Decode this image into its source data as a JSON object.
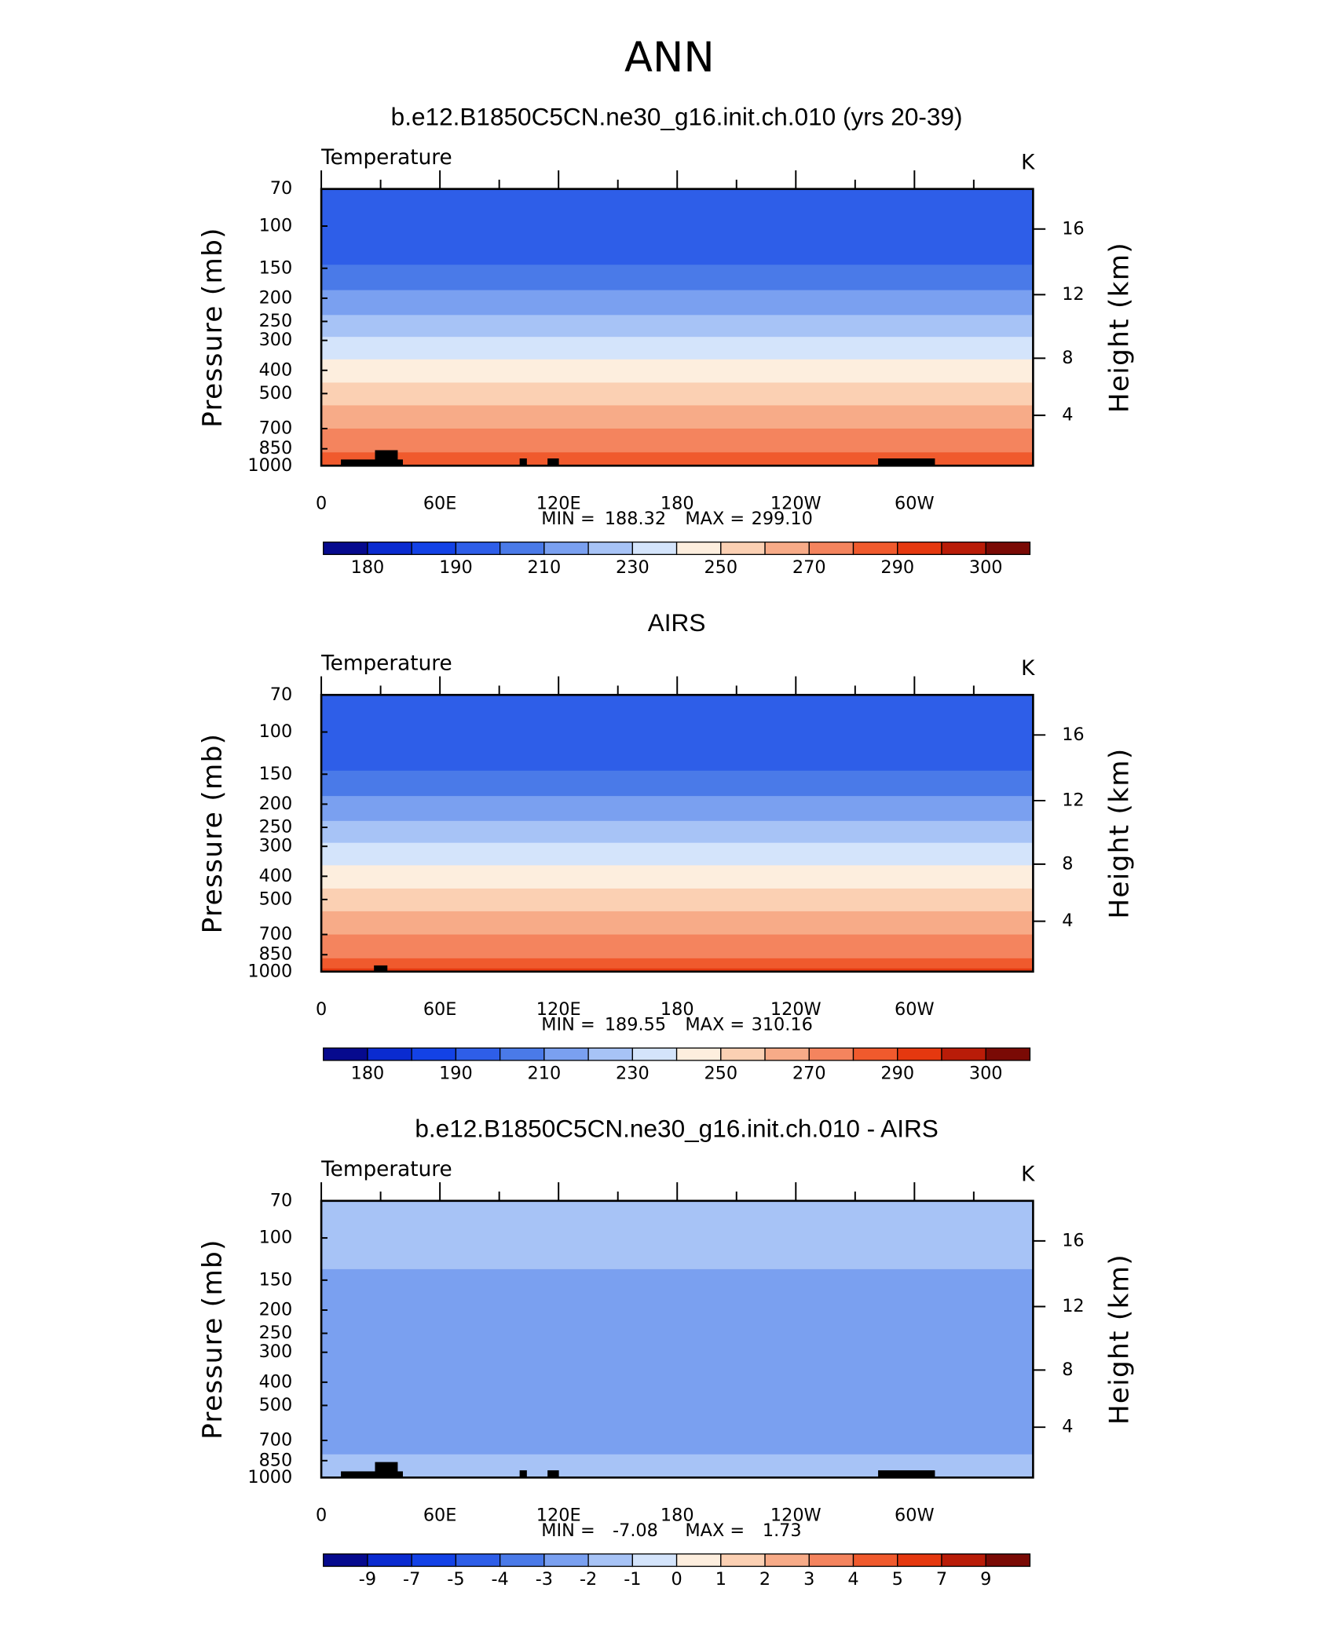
{
  "title": "ANN",
  "chart_data": [
    {
      "type": "contour",
      "title": "b.e12.B1850C5CN.ne30_g16.init.ch.010 (yrs 20-39)",
      "subtitle": "Temperature",
      "units": "K",
      "ylabel": "Pressure (mb)",
      "y2label": "Height (km)",
      "ylim": [
        1000,
        70
      ],
      "log_y": true,
      "yticks": [
        70,
        100,
        150,
        200,
        250,
        300,
        400,
        500,
        700,
        850,
        1000
      ],
      "y2ticks": [
        4,
        8,
        12,
        16
      ],
      "xlim": [
        0,
        360
      ],
      "xticks": [
        0,
        {
          "value": 60,
          "label": "60E"
        },
        {
          "value": 120,
          "label": "120E"
        },
        180,
        {
          "value": 240,
          "label": "120W"
        },
        {
          "value": 300,
          "label": "60W"
        }
      ],
      "min_label": "MIN =",
      "min": 188.32,
      "max_label": "MAX =",
      "max": {
        "value": 299.1,
        "label": "299.10"
      },
      "field": {
        "pressure": [
          70,
          145,
          185,
          235,
          290,
          360,
          450,
          560,
          700,
          880,
          1000
        ],
        "values": [
          195,
          205,
          215,
          225,
          235,
          245,
          255,
          265,
          275,
          285
        ]
      },
      "colorbar": {
        "levels": [
          180,
          185,
          190,
          200,
          210,
          220,
          230,
          240,
          250,
          260,
          270,
          280,
          290,
          295,
          300
        ],
        "ticks": [
          180,
          190,
          210,
          230,
          250,
          270,
          290,
          300
        ],
        "colors": [
          "#060a8e",
          "#0a2bd0",
          "#1342e6",
          "#2e5ee8",
          "#4a7ae8",
          "#7aa0f0",
          "#a7c3f6",
          "#d4e4fb",
          "#fdeede",
          "#fbd0b3",
          "#f7ab88",
          "#f4845e",
          "#f05a2d",
          "#e5380f",
          "#b91c08",
          "#7a0a05"
        ]
      }
    },
    {
      "type": "contour",
      "title": "AIRS",
      "subtitle": "Temperature",
      "units": "K",
      "ylabel": "Pressure (mb)",
      "y2label": "Height (km)",
      "ylim": [
        1000,
        70
      ],
      "log_y": true,
      "yticks": [
        70,
        100,
        150,
        200,
        250,
        300,
        400,
        500,
        700,
        850,
        1000
      ],
      "y2ticks": [
        4,
        8,
        12,
        16
      ],
      "xlim": [
        0,
        360
      ],
      "xticks": [
        0,
        {
          "value": 60,
          "label": "60E"
        },
        {
          "value": 120,
          "label": "120E"
        },
        180,
        {
          "value": 240,
          "label": "120W"
        },
        {
          "value": 300,
          "label": "60W"
        }
      ],
      "min_label": "MIN =",
      "min": 189.55,
      "max_label": "MAX =",
      "max": 310.16,
      "field": {
        "pressure": [
          70,
          145,
          185,
          235,
          290,
          360,
          450,
          560,
          700,
          880,
          970,
          1000
        ],
        "values": [
          195,
          205,
          215,
          225,
          235,
          245,
          255,
          265,
          275,
          285,
          292
        ]
      },
      "colorbar": {
        "levels": [
          180,
          185,
          190,
          200,
          210,
          220,
          230,
          240,
          250,
          260,
          270,
          280,
          290,
          295,
          300
        ],
        "ticks": [
          180,
          190,
          210,
          230,
          250,
          270,
          290,
          300
        ],
        "colors": [
          "#060a8e",
          "#0a2bd0",
          "#1342e6",
          "#2e5ee8",
          "#4a7ae8",
          "#7aa0f0",
          "#a7c3f6",
          "#d4e4fb",
          "#fdeede",
          "#fbd0b3",
          "#f7ab88",
          "#f4845e",
          "#f05a2d",
          "#e5380f",
          "#b91c08",
          "#7a0a05"
        ]
      }
    },
    {
      "type": "contour",
      "title": "b.e12.B1850C5CN.ne30_g16.init.ch.010 - AIRS",
      "subtitle": "Temperature",
      "units": "K",
      "ylabel": "Pressure (mb)",
      "y2label": "Height (km)",
      "ylim": [
        1000,
        70
      ],
      "log_y": true,
      "yticks": [
        70,
        100,
        150,
        200,
        250,
        300,
        400,
        500,
        700,
        850,
        1000
      ],
      "y2ticks": [
        4,
        8,
        12,
        16
      ],
      "xlim": [
        0,
        360
      ],
      "xticks": [
        0,
        {
          "value": 60,
          "label": "60E"
        },
        {
          "value": 120,
          "label": "120E"
        },
        180,
        {
          "value": 240,
          "label": "120W"
        },
        {
          "value": 300,
          "label": "60W"
        }
      ],
      "min_label": "MIN =",
      "min": -7.08,
      "max_label": "MAX =",
      "max": 1.73,
      "field": {
        "pressure": [
          70,
          135,
          230,
          800,
          1000
        ],
        "values": [
          -1.5,
          -2.5,
          -2.5,
          -1.5
        ]
      },
      "colorbar": {
        "levels": [
          -9,
          -7,
          -5,
          -4,
          -3,
          -2,
          -1,
          0,
          1,
          2,
          3,
          4,
          5,
          7,
          9
        ],
        "ticks": [
          -9,
          -7,
          -5,
          -4,
          -3,
          -2,
          -1,
          0,
          1,
          2,
          3,
          4,
          5,
          7,
          9
        ],
        "colors": [
          "#060a8e",
          "#0a2bd0",
          "#1342e6",
          "#2e5ee8",
          "#4a7ae8",
          "#7aa0f0",
          "#a7c3f6",
          "#d4e4fb",
          "#fdeede",
          "#fbd0b3",
          "#f7ab88",
          "#f4845e",
          "#f05a2d",
          "#e5380f",
          "#b91c08",
          "#7a0a05"
        ]
      }
    }
  ]
}
